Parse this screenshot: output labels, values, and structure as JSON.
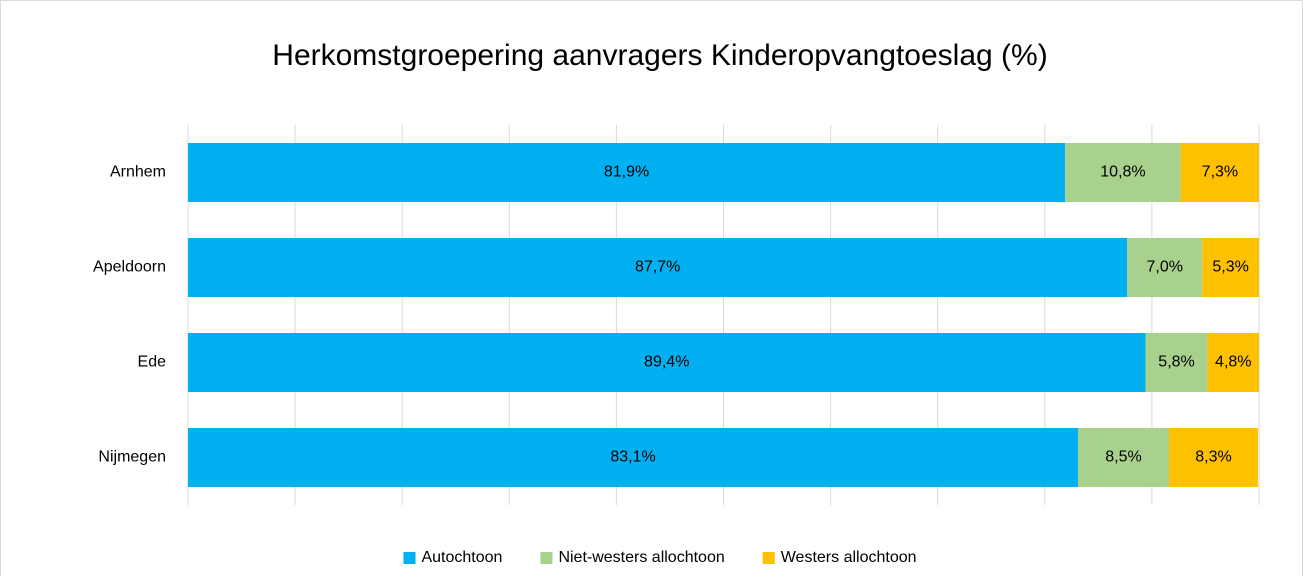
{
  "chart_data": {
    "type": "stacked-bar-horizontal",
    "title": "Herkomstgroepering aanvragers Kinderopvangtoeslag (%)",
    "categories": [
      "Arnhem",
      "Apeldoorn",
      "Ede",
      "Nijmegen"
    ],
    "series": [
      {
        "name": "Autochtoon",
        "color": "#00b0f0",
        "values": [
          81.9,
          87.7,
          89.4,
          83.1
        ],
        "value_labels": [
          "81,9%",
          "87,7%",
          "89,4%",
          "83,1%"
        ]
      },
      {
        "name": "Niet-westers allochtoon",
        "color": "#a9d18e",
        "values": [
          10.8,
          7.0,
          5.8,
          8.5
        ],
        "value_labels": [
          "10,8%",
          "7,0%",
          "5,8%",
          "8,5%"
        ]
      },
      {
        "name": "Westers allochtoon",
        "color": "#ffc000",
        "values": [
          7.3,
          5.3,
          4.8,
          8.3
        ],
        "value_labels": [
          "7,3%",
          "5,3%",
          "4,8%",
          "8,3%"
        ]
      }
    ],
    "xlim": [
      0,
      100
    ],
    "xticks": [
      0,
      10,
      20,
      30,
      40,
      50,
      60,
      70,
      80,
      90,
      100
    ],
    "grid": true,
    "legend": "bottom"
  }
}
